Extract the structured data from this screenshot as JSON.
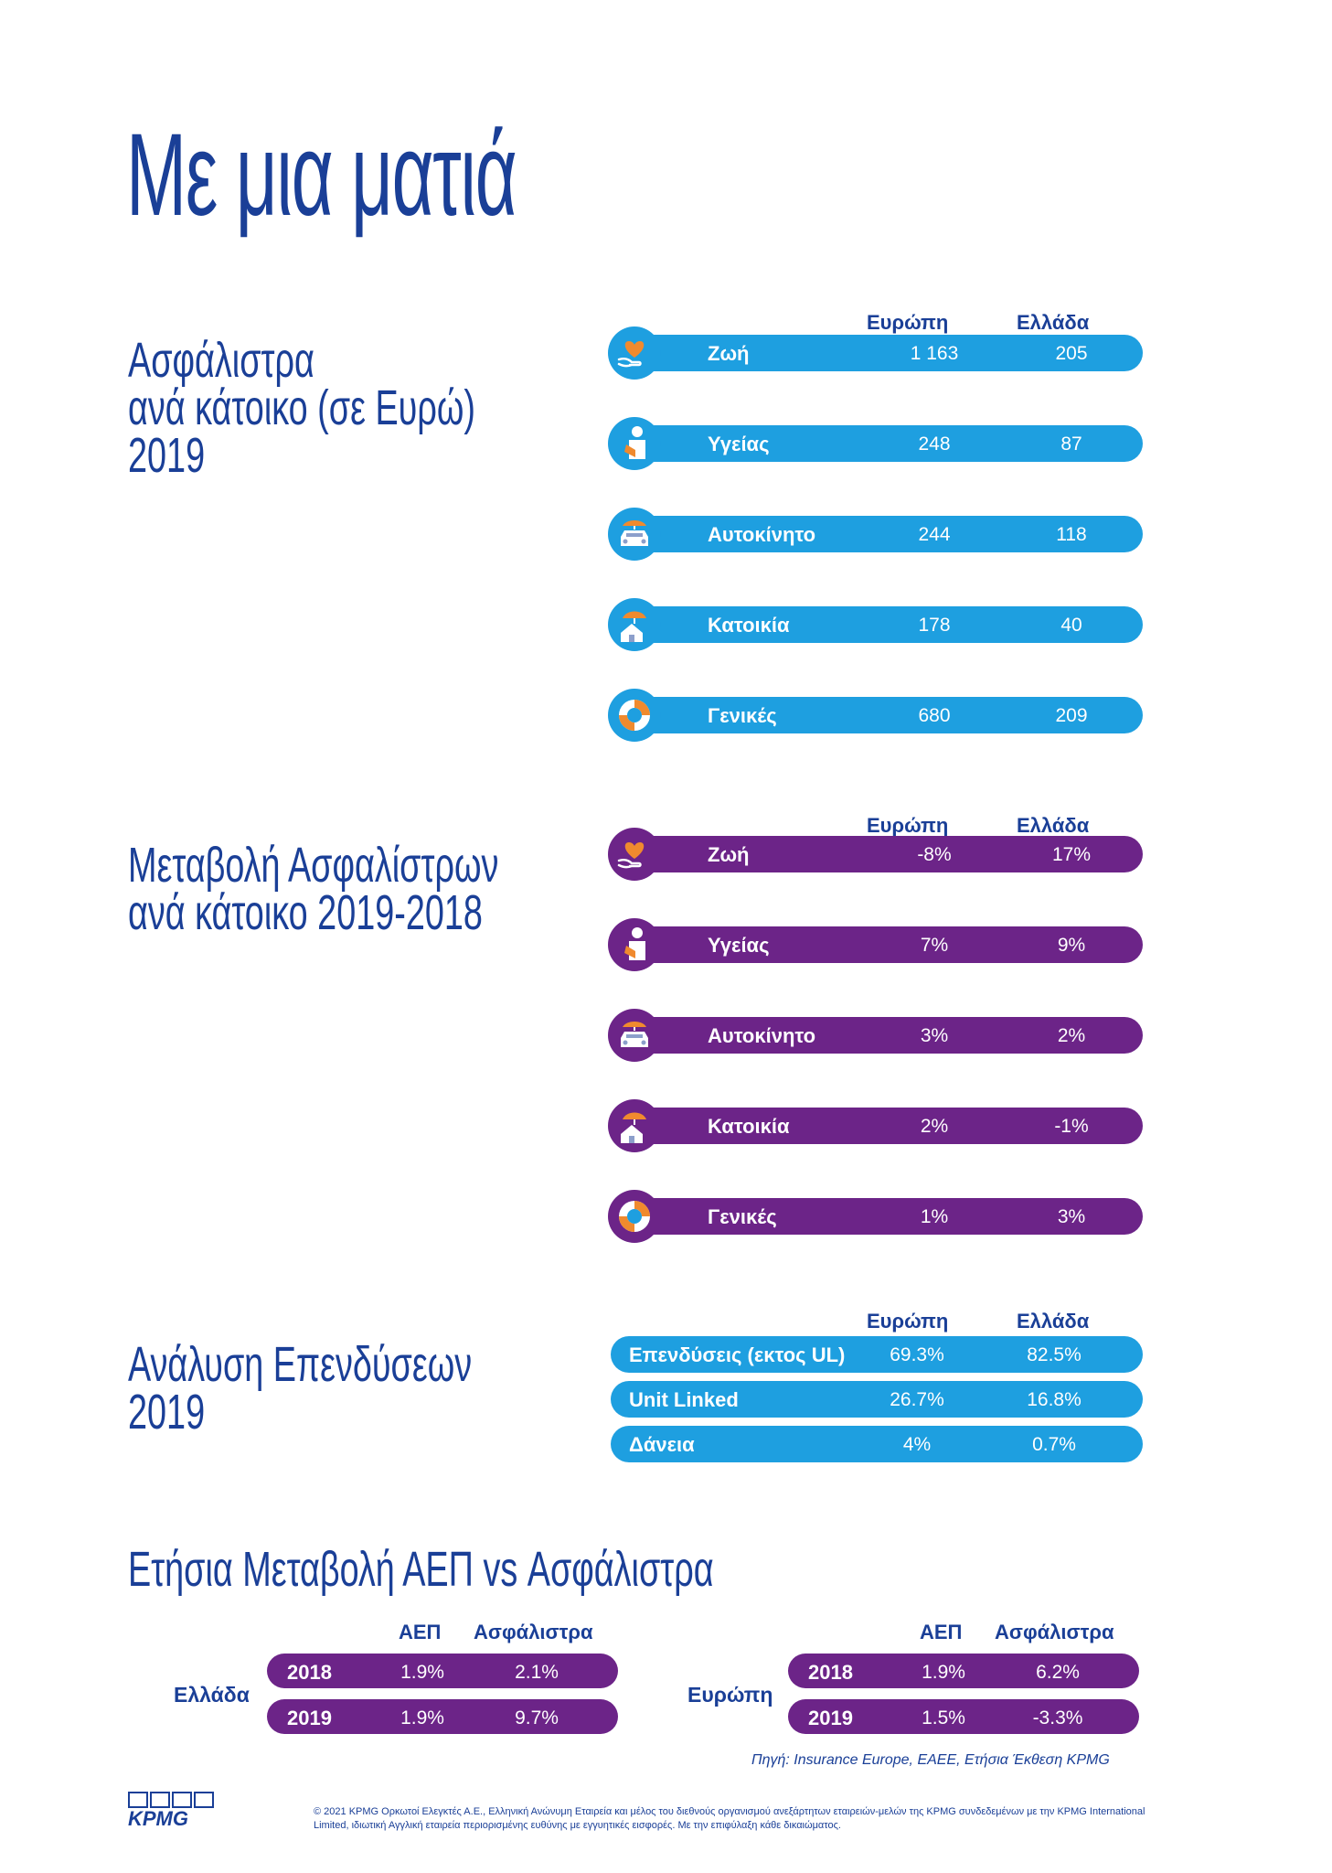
{
  "title": "Με μια ματιά",
  "columns": {
    "europe": "Ευρώπη",
    "greece": "Ελλάδα"
  },
  "premiums": {
    "title_lines": [
      "Ασφάλιστρα",
      "ανά κάτοικο (σε Ευρώ)",
      "2019"
    ],
    "rows": [
      {
        "label": "Ζωή",
        "europe": "1 163",
        "greece": "205",
        "icon": "heart-hand-icon"
      },
      {
        "label": "Υγείας",
        "europe": "248",
        "greece": "87",
        "icon": "injured-person-icon"
      },
      {
        "label": "Αυτοκίνητο",
        "europe": "244",
        "greece": "118",
        "icon": "car-umbrella-icon"
      },
      {
        "label": "Κατοικία",
        "europe": "178",
        "greece": "40",
        "icon": "house-umbrella-icon"
      },
      {
        "label": "Γενικές",
        "europe": "680",
        "greece": "209",
        "icon": "lifebuoy-icon"
      }
    ]
  },
  "change": {
    "title_lines": [
      "Μεταβολή Ασφαλίστρων",
      "ανά κάτοικο 2019-2018"
    ],
    "rows": [
      {
        "label": "Ζωή",
        "europe": "-8%",
        "greece": "17%"
      },
      {
        "label": "Υγείας",
        "europe": "7%",
        "greece": "9%"
      },
      {
        "label": "Αυτοκίνητο",
        "europe": "3%",
        "greece": "2%"
      },
      {
        "label": "Κατοικία",
        "europe": "2%",
        "greece": "-1%"
      },
      {
        "label": "Γενικές",
        "europe": "1%",
        "greece": "3%"
      }
    ]
  },
  "investments": {
    "title_lines": [
      "Ανάλυση Επενδύσεων",
      "2019"
    ],
    "rows": [
      {
        "label": "Επενδύσεις (εκτος UL)",
        "europe": "69.3%",
        "greece": "82.5%"
      },
      {
        "label": "Unit Linked",
        "europe": "26.7%",
        "greece": "16.8%"
      },
      {
        "label": "Δάνεια",
        "europe": "4%",
        "greece": "0.7%"
      }
    ]
  },
  "gdp": {
    "title": "Ετήσια Μεταβολή ΑΕΠ vs Ασφάλιστρα",
    "col_gdp": "ΑΕΠ",
    "col_premiums": "Ασφάλιστρα",
    "greece": {
      "label": "Ελλάδα",
      "rows": [
        {
          "year": "2018",
          "gdp": "1.9%",
          "premiums": "2.1%"
        },
        {
          "year": "2019",
          "gdp": "1.9%",
          "premiums": "9.7%"
        }
      ]
    },
    "europe": {
      "label": "Ευρώπη",
      "rows": [
        {
          "year": "2018",
          "gdp": "1.9%",
          "premiums": "6.2%"
        },
        {
          "year": "2019",
          "gdp": "1.5%",
          "premiums": "-3.3%"
        }
      ]
    }
  },
  "source": "Πηγή: Insurance Europe, ΕΑΕΕ, Ετήσια Έκθεση KPMG",
  "footer": "© 2021 KPMG Ορκωτοί Ελεγκτές Α.Ε., Ελληνική Ανώνυμη Εταιρεία και μέλος του διεθνούς οργανισμού ανεξάρτητων εταιρειών-μελών της KPMG συνδεδεμένων με την KPMG International Limited, ιδιωτική Αγγλική εταιρεία περιορισμένης ευθύνης με εγγυητικές εισφορές. Με την επιφύλαξη κάθε δικαιώματος.",
  "logo": "KPMG",
  "colors": {
    "blue": "#1e9fe0",
    "purple": "#6c2488",
    "navy": "#1a3f97",
    "orange": "#f08a2e"
  }
}
